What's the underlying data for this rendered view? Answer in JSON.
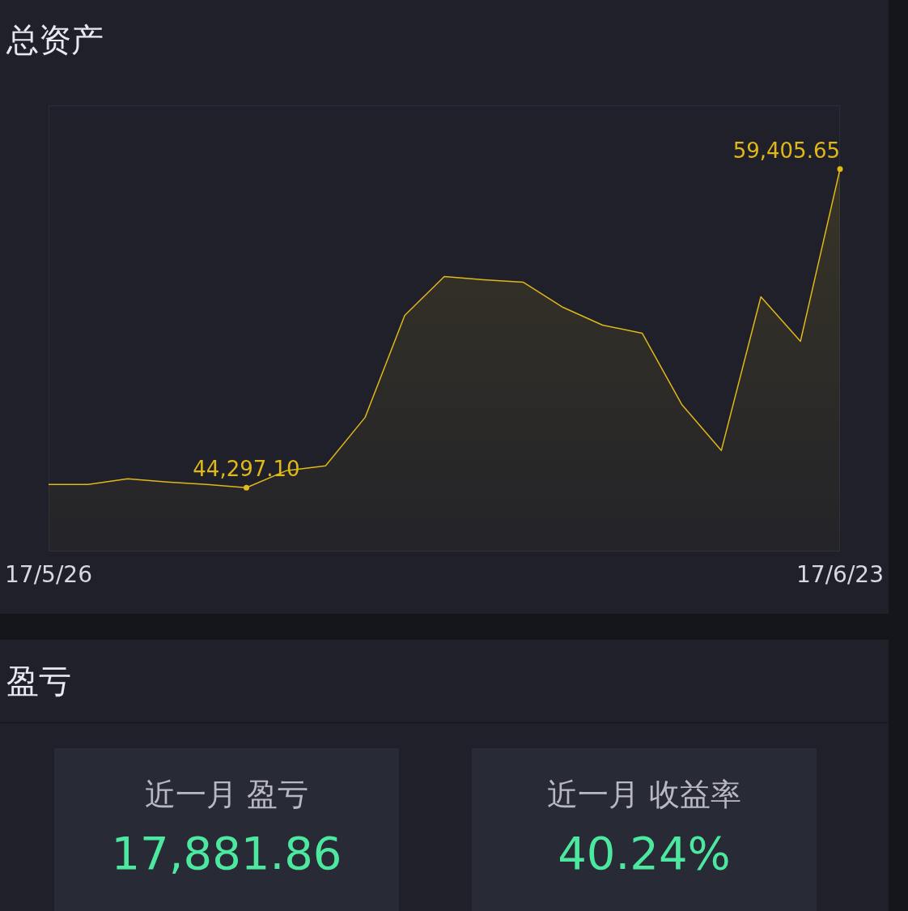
{
  "chart_data": {
    "type": "area",
    "title": "总资产",
    "categories": [
      "17/5/26",
      null,
      null,
      null,
      null,
      null,
      null,
      null,
      null,
      null,
      null,
      null,
      null,
      null,
      null,
      null,
      null,
      null,
      null,
      null,
      "17/6/23"
    ],
    "series": [
      {
        "color": "#e0b818",
        "values": [
          44450,
          44450,
          44719,
          44565,
          44450,
          44297.1,
          45102,
          45332,
          47633,
          52466,
          54306,
          54153,
          54038,
          52849,
          52005,
          51622,
          48247,
          46061,
          53348,
          51238,
          59405.65
        ],
        "value_labels": [
          null,
          null,
          null,
          null,
          null,
          "44,297.10",
          null,
          null,
          null,
          null,
          null,
          null,
          null,
          null,
          null,
          null,
          null,
          null,
          null,
          null,
          "59,405.65"
        ]
      }
    ],
    "annotations": [
      "盈亏",
      "近一月 盈亏",
      "17,881.86",
      "近一月 收益率",
      "40.24%"
    ]
  }
}
